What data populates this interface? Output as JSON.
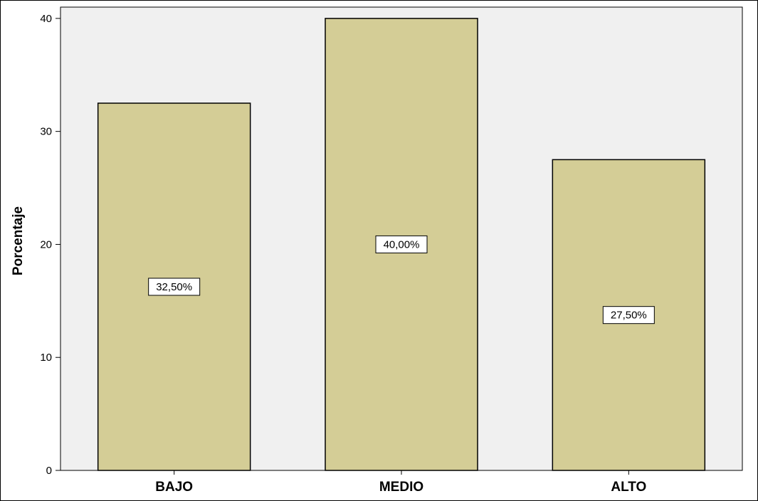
{
  "chart_data": {
    "type": "bar",
    "categories": [
      "BAJO",
      "MEDIO",
      "ALTO"
    ],
    "values": [
      32.5,
      40.0,
      27.5
    ],
    "data_labels": [
      "32,50%",
      "40,00%",
      "27,50%"
    ],
    "title": "",
    "xlabel": "",
    "ylabel": "Porcentaje",
    "ylim": [
      0,
      41
    ],
    "yticks": [
      0,
      10,
      20,
      30,
      40
    ],
    "ytick_labels": [
      "0",
      "10",
      "20",
      "30",
      "40"
    ],
    "grid": false,
    "colors": {
      "bar_fill": "#d4cd96",
      "bar_stroke": "#000000",
      "plot_background": "#f0f0f0",
      "label_box_fill": "#ffffff"
    }
  }
}
